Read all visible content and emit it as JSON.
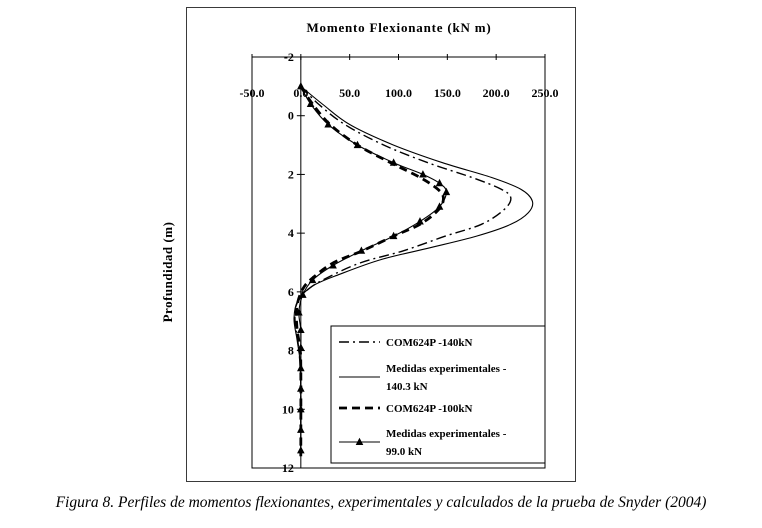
{
  "figure": {
    "caption": "Figura 8. Perfiles de momentos flexionantes, experimentales y calculados de la prueba de Snyder (2004)"
  },
  "chart_data": {
    "type": "line",
    "title": "Momento Flexionante (kN m)",
    "xlabel": "Momento Flexionante (kN m)",
    "ylabel": "Profundidad (m)",
    "xlim": [
      -50,
      250
    ],
    "ylim": [
      -2,
      12
    ],
    "y_inverted_depth_axis": true,
    "grid": false,
    "legend_position": "inside bottom-right",
    "x_tick_labels": [
      "-50.0",
      "0.0",
      "50.0",
      "100.0",
      "150.0",
      "200.0",
      "250.0"
    ],
    "x_tick_values": [
      -50,
      0,
      50,
      100,
      150,
      200,
      250
    ],
    "y_tick_labels": [
      "-2",
      "0",
      "2",
      "4",
      "6",
      "8",
      "10",
      "12"
    ],
    "y_tick_values": [
      -2,
      0,
      2,
      4,
      6,
      8,
      10,
      12
    ],
    "line_color": "#000000",
    "series": [
      {
        "id": "com624p-140",
        "name": "COM624P -140kN",
        "legend_lines": [
          "COM624P -140kN"
        ],
        "style": "dashdot",
        "points": [
          [
            0,
            -1
          ],
          [
            18,
            -0.4
          ],
          [
            45,
            0.3
          ],
          [
            85,
            1.0
          ],
          [
            130,
            1.6
          ],
          [
            175,
            2.1
          ],
          [
            205,
            2.5
          ],
          [
            215,
            2.8
          ],
          [
            208,
            3.2
          ],
          [
            185,
            3.7
          ],
          [
            148,
            4.1
          ],
          [
            105,
            4.6
          ],
          [
            62,
            5.0
          ],
          [
            28,
            5.5
          ],
          [
            8,
            5.9
          ],
          [
            -4,
            6.4
          ],
          [
            -6,
            7.0
          ],
          [
            -3,
            7.7
          ],
          [
            -1,
            8.4
          ],
          [
            0,
            9.2
          ],
          [
            0,
            11.6
          ]
        ]
      },
      {
        "id": "exp-140",
        "name": "Medidas experimentales - 140.3 kN",
        "legend_lines": [
          "Medidas experimentales -",
          "140.3 kN"
        ],
        "style": "solid",
        "points": [
          [
            0,
            -1
          ],
          [
            22,
            -0.4
          ],
          [
            50,
            0.3
          ],
          [
            95,
            1.0
          ],
          [
            145,
            1.6
          ],
          [
            195,
            2.1
          ],
          [
            225,
            2.5
          ],
          [
            237,
            2.9
          ],
          [
            233,
            3.3
          ],
          [
            215,
            3.7
          ],
          [
            180,
            4.1
          ],
          [
            132,
            4.5
          ],
          [
            82,
            4.9
          ],
          [
            40,
            5.4
          ],
          [
            12,
            5.8
          ],
          [
            -3,
            6.3
          ],
          [
            -7,
            6.9
          ],
          [
            -4,
            7.6
          ],
          [
            -1,
            8.3
          ],
          [
            0,
            9.0
          ],
          [
            0,
            11.6
          ]
        ]
      },
      {
        "id": "com624p-100",
        "name": "COM624P -100kN",
        "legend_lines": [
          "COM624P -100kN"
        ],
        "style": "dashed-thick",
        "points": [
          [
            0,
            -1
          ],
          [
            12,
            -0.4
          ],
          [
            30,
            0.3
          ],
          [
            58,
            1.0
          ],
          [
            92,
            1.6
          ],
          [
            122,
            2.1
          ],
          [
            140,
            2.5
          ],
          [
            146,
            2.8
          ],
          [
            141,
            3.2
          ],
          [
            122,
            3.7
          ],
          [
            95,
            4.1
          ],
          [
            63,
            4.6
          ],
          [
            34,
            5.0
          ],
          [
            13,
            5.5
          ],
          [
            2,
            5.9
          ],
          [
            -4,
            6.5
          ],
          [
            -4,
            7.2
          ],
          [
            -1,
            7.9
          ],
          [
            0,
            8.6
          ],
          [
            0,
            11.6
          ]
        ]
      },
      {
        "id": "exp-99",
        "name": "Medidas experimentales - 99.0 kN",
        "legend_lines": [
          "Medidas experimentales -",
          "99.0 kN"
        ],
        "style": "solid-marker",
        "points": [
          [
            0,
            -1.0
          ],
          [
            10,
            -0.4
          ],
          [
            28,
            0.3
          ],
          [
            58,
            1.0
          ],
          [
            95,
            1.6
          ],
          [
            125,
            2.0
          ],
          [
            142,
            2.3
          ],
          [
            149,
            2.6
          ],
          [
            142,
            3.1
          ],
          [
            122,
            3.6
          ],
          [
            95,
            4.1
          ],
          [
            62,
            4.6
          ],
          [
            33,
            5.1
          ],
          [
            12,
            5.6
          ],
          [
            2,
            6.1
          ],
          [
            -2,
            6.7
          ],
          [
            0,
            7.3
          ],
          [
            0,
            7.9
          ],
          [
            0,
            8.6
          ],
          [
            0,
            9.3
          ],
          [
            0,
            10.0
          ],
          [
            0,
            10.7
          ],
          [
            0,
            11.4
          ]
        ]
      }
    ]
  }
}
